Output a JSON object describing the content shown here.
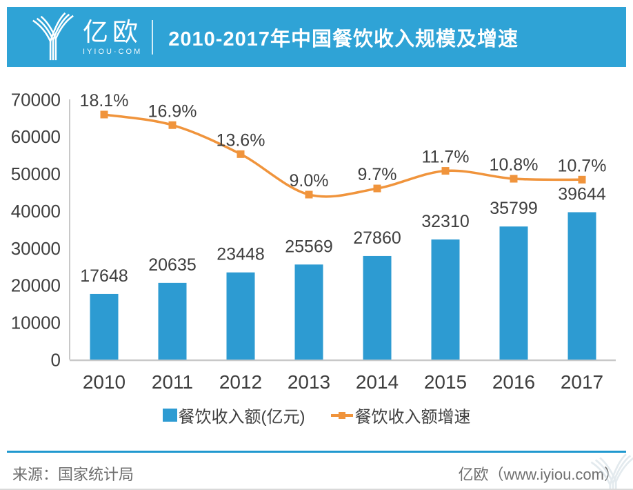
{
  "header": {
    "logo_text": "亿欧",
    "logo_subtext": "IYIOU·COM",
    "title": "2010-2017年中国餐饮收入规模及增速"
  },
  "colors": {
    "banner_blue": "#2FA3D6",
    "bar_blue": "#2D9BD2",
    "line_orange": "#F0943C",
    "axis_gray": "#C8C8C8",
    "label_dark": "#3F3F3F",
    "footer_gray": "#6E6E6E",
    "footer_line_blue": "#2098CF"
  },
  "chart_data": {
    "type": "combo-bar-line",
    "title": "2010-2017年中国餐饮收入规模及增速",
    "categories": [
      "2010",
      "2011",
      "2012",
      "2013",
      "2014",
      "2015",
      "2016",
      "2017"
    ],
    "series": [
      {
        "name": "餐饮收入额(亿元)",
        "type": "bar",
        "color": "#2D9BD2",
        "values": [
          17648,
          20635,
          23448,
          25569,
          27860,
          32310,
          35799,
          39644
        ],
        "labels": [
          "17648",
          "20635",
          "23448",
          "25569",
          "27860",
          "32310",
          "35799",
          "39644"
        ]
      },
      {
        "name": "餐饮收入额增速",
        "type": "line",
        "color": "#F0943C",
        "unit": "%",
        "values": [
          18.1,
          16.9,
          13.6,
          9.0,
          9.7,
          11.7,
          10.8,
          10.7
        ],
        "labels": [
          "18.1%",
          "16.9%",
          "13.6%",
          "9.0%",
          "9.7%",
          "11.7%",
          "10.8%",
          "10.7%"
        ]
      }
    ],
    "y_axis": {
      "min": 0,
      "max": 70000,
      "ticks": [
        0,
        10000,
        20000,
        30000,
        40000,
        50000,
        60000,
        70000
      ],
      "tick_labels": [
        "0",
        "10000",
        "20000",
        "30000",
        "40000",
        "50000",
        "60000",
        "70000"
      ]
    },
    "grid": false,
    "legend_position": "bottom"
  },
  "legend": [
    {
      "label": "餐饮收入额(亿元)",
      "marker": "square",
      "color": "#2D9BD2"
    },
    {
      "label": "餐饮收入额增速",
      "marker": "line-square",
      "color": "#F0943C"
    }
  ],
  "footer": {
    "source": "来源：国家统计局",
    "credit": "亿欧（www.iyiou.com）"
  }
}
